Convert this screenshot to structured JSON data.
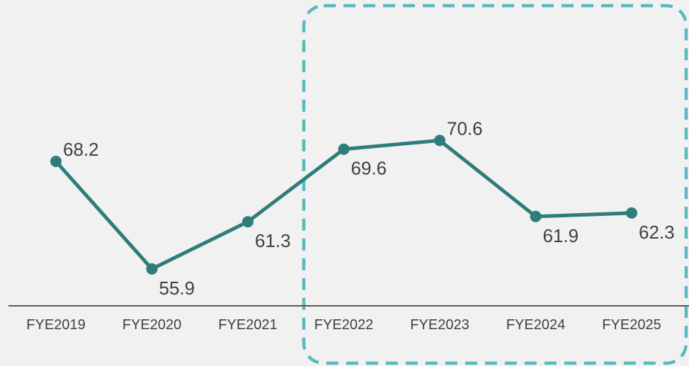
{
  "chart_data": {
    "type": "line",
    "categories": [
      "FYE2019",
      "FYE2020",
      "FYE2021",
      "FYE2022",
      "FYE2023",
      "FYE2024",
      "FYE2025"
    ],
    "series": [
      {
        "values": [
          68.2,
          55.9,
          61.3,
          69.6,
          70.6,
          61.9,
          62.3
        ]
      }
    ],
    "data_labels": [
      "68.2",
      "55.9",
      "61.3",
      "69.6",
      "70.6",
      "61.9",
      "62.3"
    ],
    "title": "",
    "xlabel": "",
    "ylabel": "",
    "y_axis_shown": false,
    "grid": false,
    "highlight": {
      "from_category": "FYE2022",
      "to_category": "FYE2025",
      "style": "dashed rounded box"
    },
    "colors": {
      "line": "#2e7d7b",
      "highlight": "#5ab9be",
      "axis": "#595959",
      "text": "#404040",
      "background": "#f1f1f1"
    }
  }
}
